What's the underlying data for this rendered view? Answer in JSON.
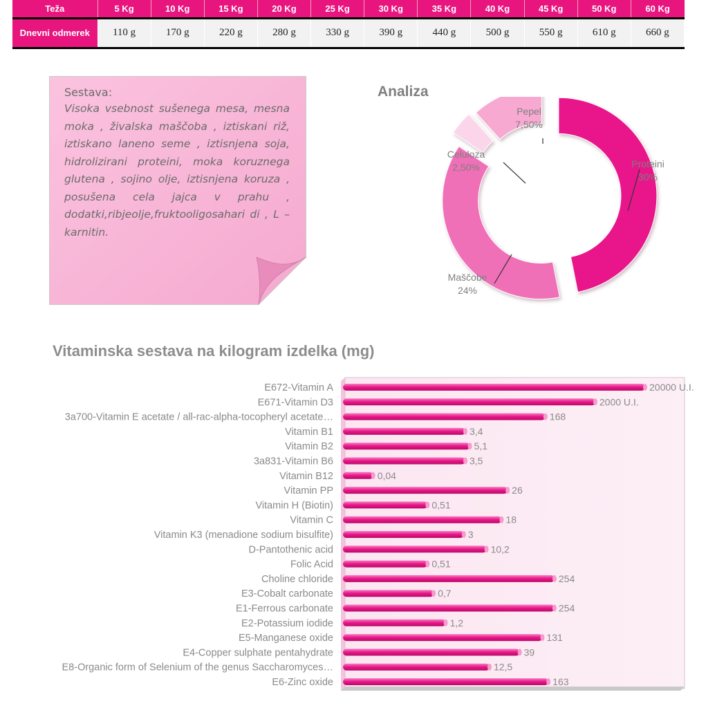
{
  "feeding_table": {
    "header_label": "Teža",
    "row_label": "Dnevni odmerek",
    "weights": [
      "5 Kg",
      "10 Kg",
      "15 Kg",
      "20 Kg",
      "25 Kg",
      "30 Kg",
      "35 Kg",
      "40 Kg",
      "45 Kg",
      "50 Kg",
      "60 Kg"
    ],
    "doses": [
      "110 g",
      "170 g",
      "220 g",
      "280 g",
      "330 g",
      "390 g",
      "440 g",
      "500 g",
      "550 g",
      "610 g",
      "660 g"
    ]
  },
  "composition": {
    "title": "Sestava:",
    "body": "Visoka vsebnost sušenega mesa, mesna moka , živalska maščoba , iztiskani riž, iztiskano laneno seme , iztisnjena soja, hidrolizirani proteini, moka koruznega glutena , sojino olje, iztisnjena koruza , posušena cela jajca v prahu , dodatki,ribjeolje,fruktooligosahari di , L –karnitin."
  },
  "analysis": {
    "title": "Analiza",
    "chart_data": {
      "type": "pie",
      "style": "exploded-donut",
      "slices": [
        {
          "name": "Proteini",
          "label": "30%",
          "value": 30,
          "color": "#e8158a"
        },
        {
          "name": "Maščobe",
          "label": "24%",
          "value": 24,
          "color": "#f070b8"
        },
        {
          "name": "Celuloza",
          "label": "2,50%",
          "value": 2.5,
          "color": "#fbd6ea"
        },
        {
          "name": "Pepel",
          "label": "7,50%",
          "value": 7.5,
          "color": "#f7a9d2"
        }
      ]
    }
  },
  "vitamins": {
    "title": "Vitaminska sestava na kilogram izdelka (mg)",
    "chart_data": {
      "type": "bar",
      "orientation": "horizontal",
      "color": "#e8158a",
      "categories": [
        "E672-Vitamin A",
        "E671-Vitamin D3",
        "3a700-Vitamin E acetate / all-rac-alpha-tocopheryl acetate…",
        "Vitamin B1",
        "Vitamin B2",
        "3a831-Vitamin B6",
        "Vitamin B12",
        "Vitamin PP",
        "Vitamin H (Biotin)",
        "Vitamin C",
        "Vitamin K3 (menadione sodium bisulfite)",
        "D-Pantothenic acid",
        "Folic Acid",
        "Choline chloride",
        "E3-Cobalt carbonate",
        "E1-Ferrous carbonate",
        "E2-Potassium iodide",
        "E5-Manganese oxide",
        "E4-Copper sulphate pentahydrate",
        "E8-Organic form of Selenium of the genus Saccharomyces…",
        "E6-Zinc oxide"
      ],
      "value_labels": [
        "20000 U.I.",
        "2000 U.I.",
        "168",
        "3,4",
        "5,1",
        "3,5",
        "0,04",
        "26",
        "0,51",
        "18",
        "3",
        "10,2",
        "0,51",
        "254",
        "0,7",
        "254",
        "1,2",
        "131",
        "39",
        "12,5",
        "163"
      ],
      "bar_fraction": [
        1.0,
        0.835,
        0.67,
        0.405,
        0.42,
        0.405,
        0.1,
        0.545,
        0.28,
        0.525,
        0.4,
        0.475,
        0.28,
        0.7,
        0.3,
        0.7,
        0.34,
        0.66,
        0.585,
        0.485,
        0.68
      ]
    }
  }
}
